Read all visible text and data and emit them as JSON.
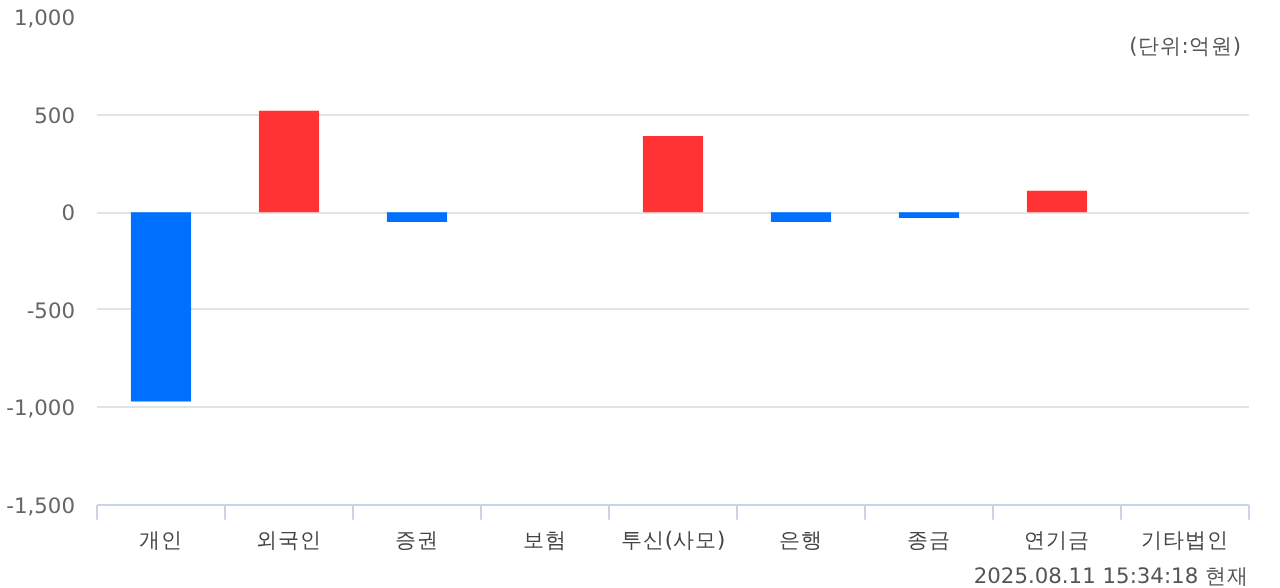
{
  "chart_data": {
    "type": "bar",
    "categories": [
      "개인",
      "외국인",
      "증권",
      "보험",
      "투신(사모)",
      "은행",
      "종금",
      "연기금",
      "기타법인"
    ],
    "values": [
      -970,
      520,
      -50,
      0,
      390,
      -50,
      -30,
      110,
      0
    ],
    "colors": [
      "#0070ff",
      "#ff3333",
      "#0070ff",
      "#ff3333",
      "#ff3333",
      "#0070ff",
      "#0070ff",
      "#ff3333",
      "#ff3333"
    ],
    "ylim": [
      -1500,
      1000
    ],
    "yticks": [
      {
        "value": -1500,
        "label": "-1,500"
      },
      {
        "value": -1000,
        "label": "-1,000"
      },
      -500,
      0,
      500,
      {
        "value": 1000,
        "label": "1,000"
      }
    ],
    "grid": "y",
    "legend": false,
    "annotations": [
      "(단위:억원)",
      "2025.08.11 15:34:18 현재"
    ]
  }
}
